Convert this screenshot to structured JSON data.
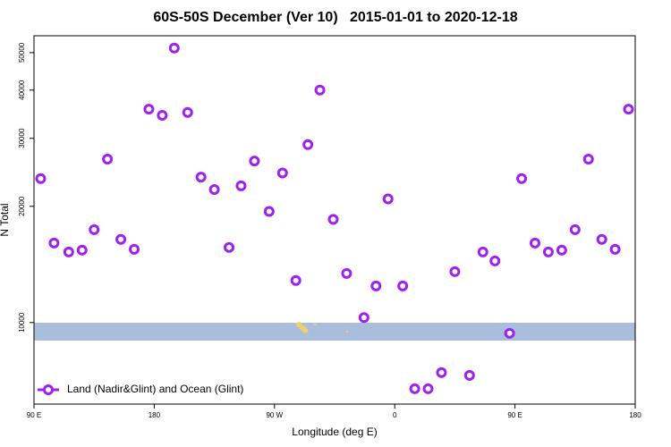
{
  "chart_data": {
    "type": "scatter",
    "title": "60S-50S December (Ver 10)   2015-01-01 to 2020-12-18",
    "xlabel": "Longitude (deg E)",
    "ylabel": "N Total",
    "xlim": [
      90,
      540
    ],
    "xticks": [
      {
        "value": 90,
        "label": "90 E"
      },
      180,
      {
        "value": 270,
        "label": "90 W"
      },
      {
        "value": 360,
        "label": "0"
      },
      {
        "value": 450,
        "label": "90 E"
      },
      {
        "value": 540,
        "label": "180"
      }
    ],
    "ylim": [
      6150,
      55300
    ],
    "ylog": true,
    "yticks": [
      10000,
      20000,
      30000,
      40000,
      50000
    ],
    "legend": "bottom-left",
    "series": [
      {
        "name": "Land (Nadir&Glint) and Ocean (Glint)",
        "color": "#a020f0",
        "x": [
          95,
          105,
          116,
          126,
          135,
          145,
          155,
          165,
          176,
          186,
          195,
          205,
          215,
          225,
          236,
          245,
          255,
          266,
          276,
          286,
          295,
          304,
          314,
          324,
          337,
          346,
          355,
          366,
          375,
          385,
          395,
          405,
          416,
          426,
          435,
          446,
          455,
          465,
          475,
          485,
          495,
          505,
          515,
          525,
          535
        ],
        "values": [
          23600,
          16070,
          15230,
          15400,
          17400,
          26500,
          16420,
          15480,
          35700,
          34400,
          51400,
          35000,
          23800,
          22100,
          15650,
          22600,
          26200,
          19400,
          24400,
          12850,
          28900,
          40000,
          18500,
          13400,
          10300,
          12440,
          20900,
          12440,
          6740,
          6740,
          7420,
          13550,
          7300,
          15230,
          14440,
          9380,
          23600,
          16070,
          15230,
          15400,
          17400,
          26500,
          16420,
          15480,
          35700
        ]
      }
    ]
  }
}
